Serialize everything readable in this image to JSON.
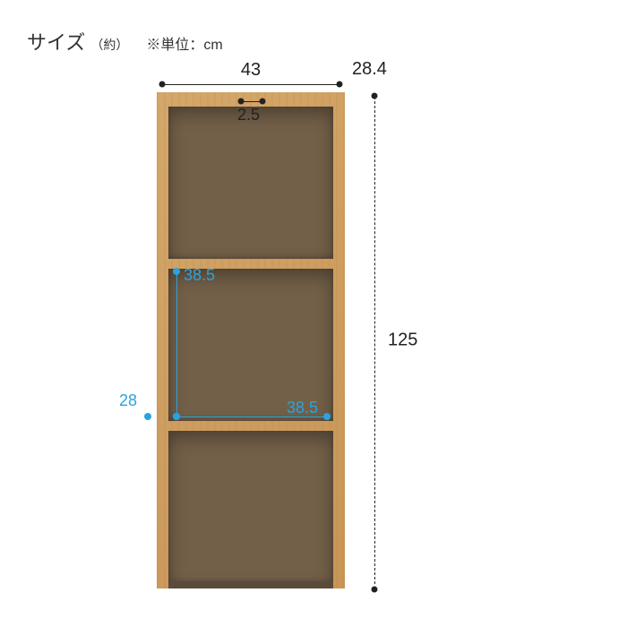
{
  "header": {
    "title": "サイズ",
    "approx": "（約）",
    "unit_note": "※単位：cm"
  },
  "dimensions": {
    "outer_width": "43",
    "outer_depth": "28.4",
    "outer_height": "125",
    "panel_thickness": "2.5",
    "inner_height": "38.5",
    "inner_width": "38.5",
    "inner_depth": "28"
  },
  "style": {
    "text_color": "#222222",
    "accent_color": "#29a3e0",
    "wood_light": "#d4a76a",
    "wood_dark": "#736049",
    "background": "#ffffff",
    "title_fontsize": 22,
    "label_fontsize": 20,
    "accent_fontsize": 18
  },
  "structure": {
    "type": "dimension-diagram",
    "compartments": 3
  }
}
